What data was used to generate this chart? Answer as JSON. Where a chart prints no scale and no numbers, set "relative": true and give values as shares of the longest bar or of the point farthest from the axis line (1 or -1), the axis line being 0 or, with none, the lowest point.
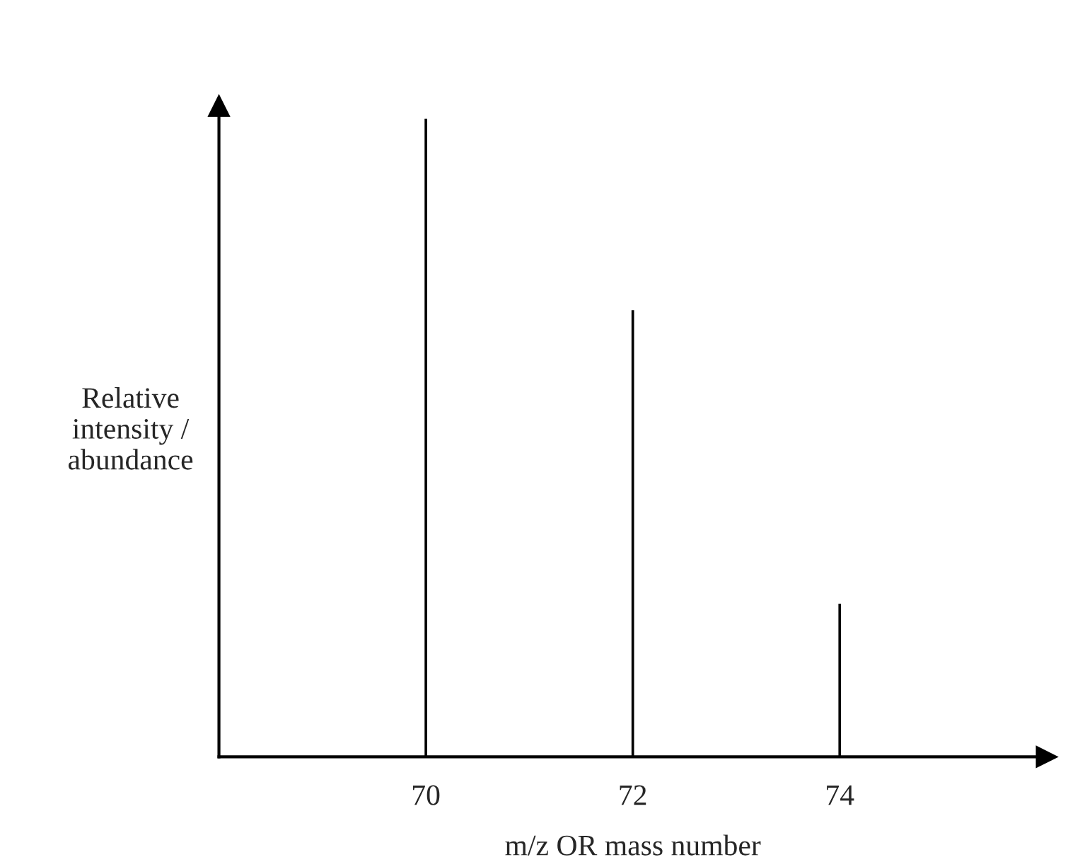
{
  "chart_data": {
    "type": "bar",
    "relative": true,
    "xlabel": "m/z OR mass number",
    "ylabel": "Relative\nintensity /\nabundance",
    "x": [
      70,
      72,
      74
    ],
    "values": [
      1,
      0.7,
      0.24
    ],
    "color": "#000000",
    "xlim": [
      68,
      76
    ],
    "xticks": [
      70,
      72,
      74
    ],
    "grid": false
  }
}
